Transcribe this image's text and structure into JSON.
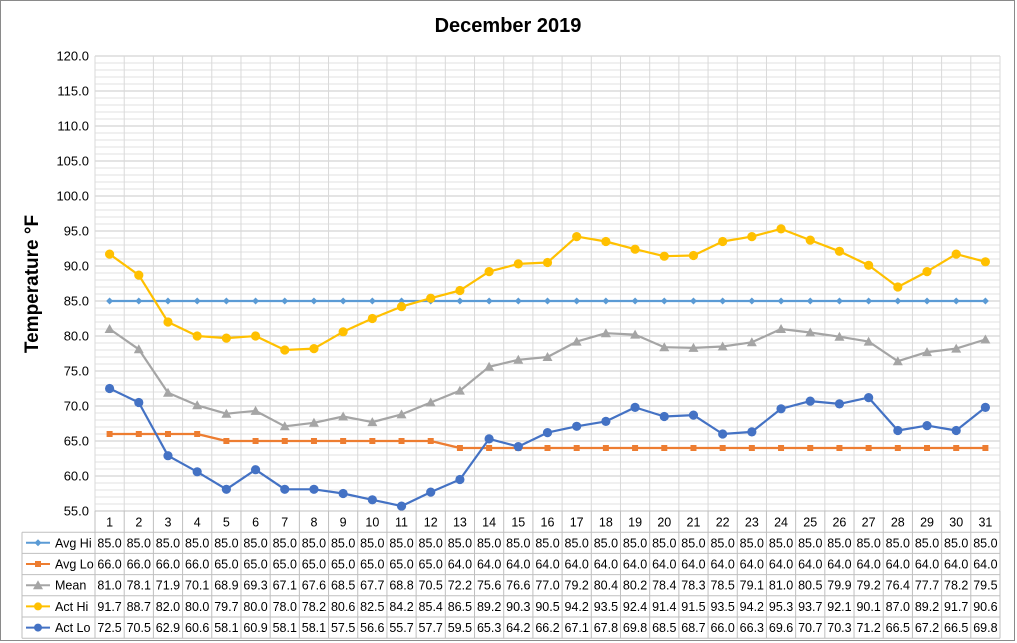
{
  "chart_data": {
    "type": "line",
    "title": "December 2019",
    "xlabel": "",
    "ylabel": "Temperature °F",
    "ylim": [
      55,
      120
    ],
    "yticks": [
      "55.0",
      "60.0",
      "65.0",
      "70.0",
      "75.0",
      "80.0",
      "85.0",
      "90.0",
      "95.0",
      "100.0",
      "105.0",
      "110.0",
      "115.0",
      "120.0"
    ],
    "grid": true,
    "legend": "data-table-bottom",
    "categories": [
      "1",
      "2",
      "3",
      "4",
      "5",
      "6",
      "7",
      "8",
      "9",
      "10",
      "11",
      "12",
      "13",
      "14",
      "15",
      "16",
      "17",
      "18",
      "19",
      "20",
      "21",
      "22",
      "23",
      "24",
      "25",
      "26",
      "27",
      "28",
      "29",
      "30",
      "31"
    ],
    "series": [
      {
        "name": "Avg Hi",
        "color": "#5B9BD5",
        "marker": "diamond",
        "values": [
          85.0,
          85.0,
          85.0,
          85.0,
          85.0,
          85.0,
          85.0,
          85.0,
          85.0,
          85.0,
          85.0,
          85.0,
          85.0,
          85.0,
          85.0,
          85.0,
          85.0,
          85.0,
          85.0,
          85.0,
          85.0,
          85.0,
          85.0,
          85.0,
          85.0,
          85.0,
          85.0,
          85.0,
          85.0,
          85.0,
          85.0
        ]
      },
      {
        "name": "Avg Lo",
        "color": "#ED7D31",
        "marker": "square",
        "values": [
          66.0,
          66.0,
          66.0,
          66.0,
          65.0,
          65.0,
          65.0,
          65.0,
          65.0,
          65.0,
          65.0,
          65.0,
          64.0,
          64.0,
          64.0,
          64.0,
          64.0,
          64.0,
          64.0,
          64.0,
          64.0,
          64.0,
          64.0,
          64.0,
          64.0,
          64.0,
          64.0,
          64.0,
          64.0,
          64.0,
          64.0
        ]
      },
      {
        "name": "Mean",
        "color": "#A5A5A5",
        "marker": "triangle",
        "values": [
          81.0,
          78.1,
          71.9,
          70.1,
          68.9,
          69.3,
          67.1,
          67.6,
          68.5,
          67.7,
          68.8,
          70.5,
          72.2,
          75.6,
          76.6,
          77.0,
          79.2,
          80.4,
          80.2,
          78.4,
          78.3,
          78.5,
          79.1,
          81.0,
          80.5,
          79.9,
          79.2,
          76.4,
          77.7,
          78.2,
          79.5
        ]
      },
      {
        "name": "Act Hi",
        "color": "#FFC000",
        "marker": "circle",
        "values": [
          91.7,
          88.7,
          82.0,
          80.0,
          79.7,
          80.0,
          78.0,
          78.2,
          80.6,
          82.5,
          84.2,
          85.4,
          86.5,
          89.2,
          90.3,
          90.5,
          94.2,
          93.5,
          92.4,
          91.4,
          91.5,
          93.5,
          94.2,
          95.3,
          93.7,
          92.1,
          90.1,
          87.0,
          89.2,
          91.7,
          90.6
        ]
      },
      {
        "name": "Act Lo",
        "color": "#4472C4",
        "marker": "circle",
        "values": [
          72.5,
          70.5,
          62.9,
          60.6,
          58.1,
          60.9,
          58.1,
          58.1,
          57.5,
          56.6,
          55.7,
          57.7,
          59.5,
          65.3,
          64.2,
          66.2,
          67.1,
          67.8,
          69.8,
          68.5,
          68.7,
          66.0,
          66.3,
          69.6,
          70.7,
          70.3,
          71.2,
          66.5,
          67.2,
          66.5,
          69.8
        ]
      }
    ]
  }
}
